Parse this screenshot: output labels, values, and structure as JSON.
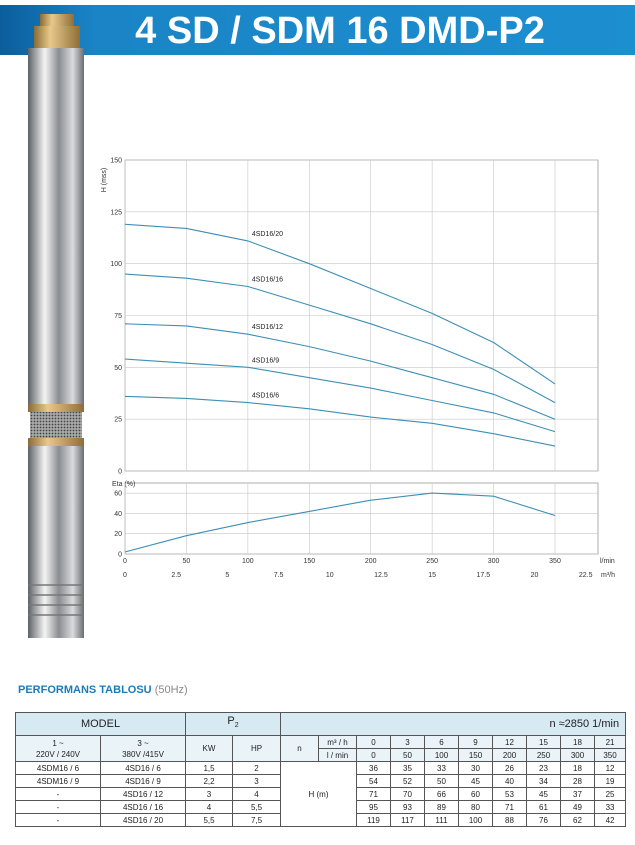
{
  "header": {
    "title": "4 SD / SDM 16 DMD-P2"
  },
  "chart_data": [
    {
      "type": "line",
      "y_label": "H (mss)",
      "x": [
        0,
        50,
        100,
        150,
        200,
        250,
        300,
        350
      ],
      "series": [
        {
          "name": "4SD16/20",
          "color": "#3d8fb5",
          "values": [
            119,
            117,
            111,
            100,
            88,
            76,
            62,
            42
          ]
        },
        {
          "name": "4SD16/16",
          "color": "#3d8fb5",
          "values": [
            95,
            93,
            89,
            80,
            71,
            61,
            49,
            33
          ]
        },
        {
          "name": "4SD16/12",
          "color": "#3d8fb5",
          "values": [
            71,
            70,
            66,
            60,
            53,
            45,
            37,
            25
          ]
        },
        {
          "name": "4SD16/9",
          "color": "#3d8fb5",
          "values": [
            54,
            52,
            50,
            45,
            40,
            34,
            28,
            19
          ]
        },
        {
          "name": "4SD16/6",
          "color": "#3d8fb5",
          "values": [
            36,
            35,
            33,
            30,
            26,
            23,
            18,
            12
          ]
        }
      ],
      "xlim": [
        0,
        385
      ],
      "xticks": [
        0,
        50,
        100,
        150,
        200,
        250,
        300,
        350
      ],
      "ylim": [
        0,
        150
      ],
      "yticks": [
        0,
        25,
        50,
        75,
        100,
        125,
        150
      ],
      "grid": true
    },
    {
      "type": "line",
      "y_label": "Eta (%)",
      "x_label": "l/min",
      "x2_label": "m³/h",
      "x": [
        0,
        50,
        100,
        150,
        200,
        250,
        300,
        350
      ],
      "series": [
        {
          "color": "#3d8fb5",
          "values": [
            2,
            18,
            31,
            42,
            53,
            60,
            57,
            38
          ]
        }
      ],
      "xlim": [
        0,
        385
      ],
      "xticks": [
        0,
        50,
        100,
        150,
        200,
        250,
        300,
        350
      ],
      "x2lim": [
        0,
        23.1
      ],
      "x2ticks": [
        0,
        2.5,
        5,
        7.5,
        10,
        12.5,
        15,
        17.5,
        20,
        22.5
      ],
      "ylim": [
        0,
        70
      ],
      "yticks": [
        0,
        20,
        40,
        60
      ],
      "grid": true
    }
  ],
  "table": {
    "heading": "PERFORMANS TABLOSU",
    "heading_note": "(50Hz)",
    "model": "MODEL",
    "power": "P",
    "power_sub": "2",
    "speed": "n ≈2850 1/min",
    "single_phase": [
      "1 ~",
      "220V / 240V"
    ],
    "three_phase": [
      "3 ~",
      "380V /415V"
    ],
    "kw": "KW",
    "hp": "HP",
    "n": "n",
    "flow_units": [
      "m³ / h",
      "l / min"
    ],
    "flow_m3h": [
      0,
      3,
      6,
      9,
      12,
      15,
      18,
      21
    ],
    "flow_lmin": [
      0,
      50,
      100,
      150,
      200,
      250,
      300,
      350
    ],
    "head_label": "H (m)",
    "rows": [
      {
        "single": "4SDM16 / 6",
        "three": "4SD16 / 6",
        "kw": "1,5",
        "hp": "2",
        "head": [
          36,
          35,
          33,
          30,
          26,
          23,
          18,
          12
        ]
      },
      {
        "single": "4SDM16 / 9",
        "three": "4SD16 / 9",
        "kw": "2,2",
        "hp": "3",
        "head": [
          54,
          52,
          50,
          45,
          40,
          34,
          28,
          19
        ]
      },
      {
        "single": "-",
        "three": "4SD16 / 12",
        "kw": "3",
        "hp": "4",
        "head": [
          71,
          70,
          66,
          60,
          53,
          45,
          37,
          25
        ]
      },
      {
        "single": "-",
        "three": "4SD16 / 16",
        "kw": "4",
        "hp": "5,5",
        "head": [
          95,
          93,
          89,
          80,
          71,
          61,
          49,
          33
        ]
      },
      {
        "single": "-",
        "three": "4SD16 / 20",
        "kw": "5,5",
        "hp": "7,5",
        "head": [
          119,
          117,
          111,
          100,
          88,
          76,
          62,
          42
        ]
      }
    ]
  }
}
